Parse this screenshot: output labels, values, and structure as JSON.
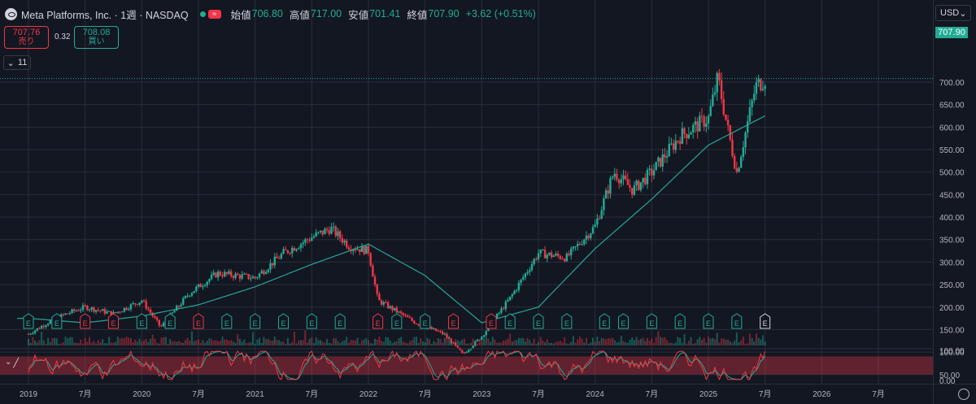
{
  "header": {
    "symbol": "Meta Platforms, Inc. · 1週 · NASDAQ",
    "toggle_label": "≈",
    "open_label": "始値",
    "open": "706.80",
    "high_label": "高値",
    "high": "717.00",
    "low_label": "安値",
    "low": "701.41",
    "close_label": "終値",
    "close": "707.90",
    "change": "+3.62 (+0.51%)"
  },
  "trade": {
    "sell_price": "707.76",
    "sell_label": "売り",
    "spread": "0.32",
    "buy_price": "708.08",
    "buy_label": "買い"
  },
  "indicator_collapse_label": "11",
  "currency": "USD",
  "last_price_label": "707.90",
  "colors": {
    "up": "#22ab94",
    "down": "#f23645",
    "ma": "#26a69a",
    "stoch_k": "#f23645",
    "stoch_d": "#22ab94",
    "grid": "#2a2e39"
  },
  "chart_data": {
    "type": "candlestick",
    "interval": "1 week",
    "y_ticks": [
      "700.00",
      "650.00",
      "600.00",
      "550.00",
      "500.00",
      "450.00",
      "400.00",
      "350.00",
      "300.00",
      "250.00",
      "200.00",
      "150.00",
      "100.00",
      "50.00"
    ],
    "x_ticks": [
      "2019",
      "7月",
      "2020",
      "7月",
      "2021",
      "7月",
      "2022",
      "7月",
      "2023",
      "7月",
      "2024",
      "7月",
      "2025",
      "7月",
      "2026",
      "7月"
    ],
    "price_range": [
      50,
      710
    ],
    "price_path": [
      {
        "date": "2019-01",
        "price": 140
      },
      {
        "date": "2019-03",
        "price": 165
      },
      {
        "date": "2019-05",
        "price": 185
      },
      {
        "date": "2019-07",
        "price": 200
      },
      {
        "date": "2019-10",
        "price": 185
      },
      {
        "date": "2020-01",
        "price": 215
      },
      {
        "date": "2020-03",
        "price": 155
      },
      {
        "date": "2020-06",
        "price": 230
      },
      {
        "date": "2020-09",
        "price": 275
      },
      {
        "date": "2021-01",
        "price": 265
      },
      {
        "date": "2021-04",
        "price": 320
      },
      {
        "date": "2021-07",
        "price": 355
      },
      {
        "date": "2021-09",
        "price": 375
      },
      {
        "date": "2021-11",
        "price": 335
      },
      {
        "date": "2022-01",
        "price": 325
      },
      {
        "date": "2022-02",
        "price": 215
      },
      {
        "date": "2022-06",
        "price": 165
      },
      {
        "date": "2022-09",
        "price": 140
      },
      {
        "date": "2022-11",
        "price": 95
      },
      {
        "date": "2023-01",
        "price": 135
      },
      {
        "date": "2023-04",
        "price": 220
      },
      {
        "date": "2023-07",
        "price": 320
      },
      {
        "date": "2023-10",
        "price": 310
      },
      {
        "date": "2024-01",
        "price": 380
      },
      {
        "date": "2024-03",
        "price": 500
      },
      {
        "date": "2024-05",
        "price": 460
      },
      {
        "date": "2024-07",
        "price": 500
      },
      {
        "date": "2024-10",
        "price": 580
      },
      {
        "date": "2025-01",
        "price": 620
      },
      {
        "date": "2025-02",
        "price": 710
      },
      {
        "date": "2025-03",
        "price": 600
      },
      {
        "date": "2025-04",
        "price": 500
      },
      {
        "date": "2025-06",
        "price": 690
      },
      {
        "date": "2025-07",
        "price": 707.9
      }
    ],
    "moving_average": [
      {
        "date": "2019-01",
        "value": 175
      },
      {
        "date": "2019-07",
        "value": 165
      },
      {
        "date": "2020-01",
        "value": 180
      },
      {
        "date": "2020-07",
        "value": 205
      },
      {
        "date": "2021-01",
        "value": 245
      },
      {
        "date": "2021-07",
        "value": 295
      },
      {
        "date": "2022-01",
        "value": 340
      },
      {
        "date": "2022-07",
        "value": 270
      },
      {
        "date": "2023-01",
        "value": 165
      },
      {
        "date": "2023-07",
        "value": 200
      },
      {
        "date": "2024-01",
        "value": 330
      },
      {
        "date": "2024-07",
        "value": 440
      },
      {
        "date": "2025-01",
        "value": 560
      },
      {
        "date": "2025-07",
        "value": 625
      }
    ],
    "earnings_markers": [
      {
        "date": "2019-01",
        "result": "up"
      },
      {
        "date": "2019-04",
        "result": "up"
      },
      {
        "date": "2019-07",
        "result": "down"
      },
      {
        "date": "2019-10",
        "result": "down"
      },
      {
        "date": "2020-01",
        "result": "up"
      },
      {
        "date": "2020-04",
        "result": "up"
      },
      {
        "date": "2020-07",
        "result": "down"
      },
      {
        "date": "2020-10",
        "result": "up"
      },
      {
        "date": "2021-01",
        "result": "up"
      },
      {
        "date": "2021-04",
        "result": "up"
      },
      {
        "date": "2021-07",
        "result": "up"
      },
      {
        "date": "2021-10",
        "result": "up"
      },
      {
        "date": "2022-02",
        "result": "down"
      },
      {
        "date": "2022-04",
        "result": "up"
      },
      {
        "date": "2022-07",
        "result": "up"
      },
      {
        "date": "2022-10",
        "result": "down"
      },
      {
        "date": "2023-02",
        "result": "down"
      },
      {
        "date": "2023-04",
        "result": "up"
      },
      {
        "date": "2023-07",
        "result": "up"
      },
      {
        "date": "2023-10",
        "result": "up"
      },
      {
        "date": "2024-02",
        "result": "up"
      },
      {
        "date": "2024-04",
        "result": "up"
      },
      {
        "date": "2024-07",
        "result": "up"
      },
      {
        "date": "2024-10",
        "result": "up"
      },
      {
        "date": "2025-01",
        "result": "up"
      },
      {
        "date": "2025-04",
        "result": "up"
      },
      {
        "date": "2025-07",
        "result": "upcoming"
      }
    ],
    "earnings_label": "E",
    "oscillator": {
      "y_ticks": [
        "100.00",
        "0.00"
      ],
      "upper_band": 80,
      "lower_band": 20
    }
  }
}
